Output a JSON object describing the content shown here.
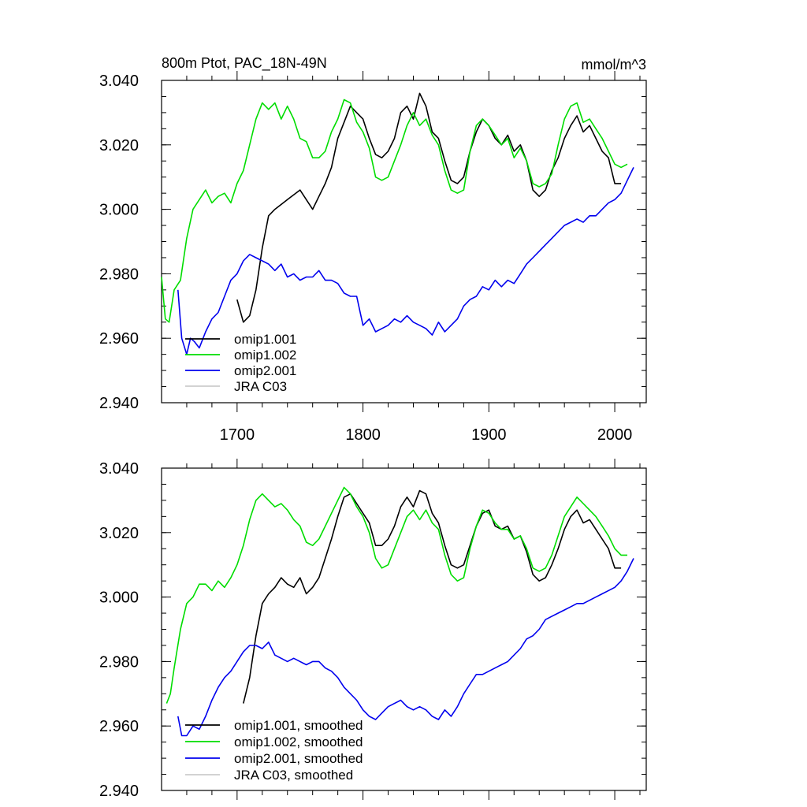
{
  "chart_data": [
    {
      "type": "line",
      "title_left": "800m Ptot, PAC_18N-49N",
      "title_right": "mmol/m^3",
      "xlim": [
        1640,
        2025
      ],
      "ylim": [
        2.94,
        3.04
      ],
      "yticks": [
        "3.040",
        "3.020",
        "3.000",
        "2.980",
        "2.960",
        "2.940"
      ],
      "xticks": [
        "1700",
        "1800",
        "1900",
        "2000"
      ],
      "legend": [
        "omip1.001",
        "omip1.002",
        "omip2.001",
        "JRA C03"
      ],
      "series": [
        {
          "name": "omip1.001",
          "color": "#000000",
          "x": [
            1700,
            1705,
            1710,
            1715,
            1720,
            1725,
            1730,
            1740,
            1750,
            1760,
            1765,
            1770,
            1775,
            1780,
            1785,
            1790,
            1795,
            1800,
            1805,
            1810,
            1815,
            1820,
            1825,
            1830,
            1835,
            1840,
            1845,
            1850,
            1855,
            1860,
            1865,
            1870,
            1875,
            1880,
            1885,
            1890,
            1895,
            1900,
            1905,
            1910,
            1915,
            1920,
            1925,
            1930,
            1935,
            1940,
            1945,
            1950,
            1955,
            1960,
            1965,
            1970,
            1975,
            1980,
            1985,
            1990,
            1995,
            2000,
            2005
          ],
          "y": [
            2.972,
            2.965,
            2.967,
            2.975,
            2.988,
            2.998,
            3.0,
            3.003,
            3.006,
            3.0,
            3.004,
            3.008,
            3.013,
            3.022,
            3.027,
            3.032,
            3.03,
            3.028,
            3.022,
            3.017,
            3.016,
            3.018,
            3.022,
            3.03,
            3.032,
            3.028,
            3.036,
            3.032,
            3.024,
            3.022,
            3.015,
            3.009,
            3.008,
            3.01,
            3.018,
            3.024,
            3.028,
            3.026,
            3.022,
            3.02,
            3.023,
            3.018,
            3.02,
            3.015,
            3.006,
            3.004,
            3.006,
            3.012,
            3.016,
            3.022,
            3.026,
            3.029,
            3.024,
            3.026,
            3.022,
            3.018,
            3.016,
            3.008,
            3.008
          ]
        },
        {
          "name": "omip1.002",
          "color": "#00dd00",
          "x": [
            1640,
            1643,
            1646,
            1650,
            1655,
            1660,
            1665,
            1670,
            1675,
            1680,
            1685,
            1690,
            1695,
            1700,
            1705,
            1710,
            1715,
            1720,
            1725,
            1730,
            1735,
            1740,
            1745,
            1750,
            1755,
            1760,
            1765,
            1770,
            1775,
            1780,
            1785,
            1790,
            1795,
            1800,
            1805,
            1810,
            1815,
            1820,
            1825,
            1830,
            1835,
            1840,
            1845,
            1850,
            1855,
            1860,
            1865,
            1870,
            1875,
            1880,
            1885,
            1890,
            1895,
            1900,
            1905,
            1910,
            1915,
            1920,
            1925,
            1930,
            1935,
            1940,
            1945,
            1950,
            1955,
            1960,
            1965,
            1970,
            1975,
            1980,
            1985,
            1990,
            1995,
            2000,
            2005,
            2010
          ],
          "y": [
            2.979,
            2.966,
            2.965,
            2.975,
            2.978,
            2.991,
            3.0,
            3.003,
            3.006,
            3.002,
            3.004,
            3.005,
            3.002,
            3.008,
            3.012,
            3.02,
            3.028,
            3.033,
            3.031,
            3.033,
            3.028,
            3.032,
            3.028,
            3.022,
            3.021,
            3.016,
            3.016,
            3.018,
            3.024,
            3.028,
            3.034,
            3.033,
            3.027,
            3.024,
            3.019,
            3.01,
            3.009,
            3.01,
            3.015,
            3.02,
            3.026,
            3.03,
            3.026,
            3.028,
            3.023,
            3.02,
            3.012,
            3.006,
            3.005,
            3.006,
            3.018,
            3.026,
            3.028,
            3.026,
            3.023,
            3.02,
            3.022,
            3.016,
            3.019,
            3.015,
            3.008,
            3.007,
            3.008,
            3.011,
            3.02,
            3.028,
            3.032,
            3.033,
            3.027,
            3.028,
            3.025,
            3.022,
            3.018,
            3.014,
            3.013,
            3.014
          ]
        },
        {
          "name": "omip2.001",
          "color": "#0000ee",
          "x": [
            1653,
            1656,
            1660,
            1663,
            1666,
            1670,
            1675,
            1680,
            1685,
            1690,
            1695,
            1700,
            1705,
            1710,
            1715,
            1720,
            1725,
            1730,
            1735,
            1740,
            1745,
            1750,
            1755,
            1760,
            1765,
            1770,
            1775,
            1780,
            1785,
            1790,
            1795,
            1800,
            1805,
            1810,
            1815,
            1820,
            1825,
            1830,
            1835,
            1840,
            1845,
            1850,
            1855,
            1860,
            1865,
            1870,
            1875,
            1880,
            1885,
            1890,
            1895,
            1900,
            1905,
            1910,
            1915,
            1920,
            1925,
            1930,
            1935,
            1940,
            1945,
            1950,
            1955,
            1960,
            1965,
            1970,
            1975,
            1980,
            1985,
            1990,
            1995,
            2000,
            2005,
            2010,
            2015
          ],
          "y": [
            2.975,
            2.96,
            2.955,
            2.96,
            2.959,
            2.957,
            2.962,
            2.966,
            2.968,
            2.973,
            2.978,
            2.98,
            2.984,
            2.986,
            2.985,
            2.984,
            2.983,
            2.981,
            2.983,
            2.979,
            2.98,
            2.978,
            2.979,
            2.979,
            2.981,
            2.978,
            2.978,
            2.977,
            2.974,
            2.973,
            2.973,
            2.964,
            2.966,
            2.962,
            2.963,
            2.964,
            2.966,
            2.965,
            2.967,
            2.965,
            2.964,
            2.963,
            2.961,
            2.965,
            2.962,
            2.964,
            2.966,
            2.97,
            2.972,
            2.973,
            2.976,
            2.975,
            2.978,
            2.976,
            2.978,
            2.977,
            2.98,
            2.983,
            2.985,
            2.987,
            2.989,
            2.991,
            2.993,
            2.995,
            2.996,
            2.997,
            2.996,
            2.998,
            2.998,
            3.0,
            3.002,
            3.003,
            3.005,
            3.009,
            3.013
          ]
        },
        {
          "name": "JRA C03",
          "color": "#cccccc",
          "x": [],
          "y": []
        }
      ]
    },
    {
      "type": "line",
      "xlim": [
        1640,
        2025
      ],
      "ylim": [
        2.94,
        3.04
      ],
      "yticks": [
        "3.040",
        "3.020",
        "3.000",
        "2.980",
        "2.960",
        "2.940"
      ],
      "legend": [
        "omip1.001, smoothed",
        "omip1.002, smoothed",
        "omip2.001, smoothed",
        "JRA C03, smoothed"
      ],
      "series": [
        {
          "name": "omip1.001, smoothed",
          "color": "#000000",
          "x": [
            1705,
            1710,
            1715,
            1720,
            1725,
            1730,
            1735,
            1740,
            1745,
            1750,
            1755,
            1760,
            1765,
            1770,
            1775,
            1780,
            1785,
            1790,
            1795,
            1800,
            1805,
            1810,
            1815,
            1820,
            1825,
            1830,
            1835,
            1840,
            1845,
            1850,
            1855,
            1860,
            1865,
            1870,
            1875,
            1880,
            1885,
            1890,
            1895,
            1900,
            1905,
            1910,
            1915,
            1920,
            1925,
            1930,
            1935,
            1940,
            1945,
            1950,
            1955,
            1960,
            1965,
            1970,
            1975,
            1980,
            1985,
            1990,
            1995,
            2000,
            2005
          ],
          "y": [
            2.967,
            2.975,
            2.988,
            2.998,
            3.001,
            3.003,
            3.006,
            3.004,
            3.003,
            3.006,
            3.001,
            3.003,
            3.006,
            3.012,
            3.018,
            3.025,
            3.031,
            3.032,
            3.029,
            3.026,
            3.023,
            3.016,
            3.016,
            3.018,
            3.022,
            3.028,
            3.031,
            3.028,
            3.033,
            3.032,
            3.026,
            3.023,
            3.016,
            3.01,
            3.009,
            3.01,
            3.016,
            3.022,
            3.026,
            3.027,
            3.022,
            3.021,
            3.022,
            3.018,
            3.019,
            3.014,
            3.007,
            3.005,
            3.006,
            3.01,
            3.015,
            3.021,
            3.025,
            3.027,
            3.023,
            3.024,
            3.021,
            3.018,
            3.015,
            3.009,
            3.009
          ]
        },
        {
          "name": "omip1.002, smoothed",
          "color": "#00dd00",
          "x": [
            1644,
            1647,
            1650,
            1655,
            1660,
            1665,
            1670,
            1675,
            1680,
            1685,
            1690,
            1695,
            1700,
            1705,
            1710,
            1715,
            1720,
            1725,
            1730,
            1735,
            1740,
            1745,
            1750,
            1755,
            1760,
            1765,
            1770,
            1775,
            1780,
            1785,
            1790,
            1795,
            1800,
            1805,
            1810,
            1815,
            1820,
            1825,
            1830,
            1835,
            1840,
            1845,
            1850,
            1855,
            1860,
            1865,
            1870,
            1875,
            1880,
            1885,
            1890,
            1895,
            1900,
            1905,
            1910,
            1915,
            1920,
            1925,
            1930,
            1935,
            1940,
            1945,
            1950,
            1955,
            1960,
            1965,
            1970,
            1975,
            1980,
            1985,
            1990,
            1995,
            2000,
            2005,
            2010
          ],
          "y": [
            2.967,
            2.97,
            2.978,
            2.99,
            2.998,
            3.0,
            3.004,
            3.004,
            3.002,
            3.005,
            3.003,
            3.006,
            3.01,
            3.016,
            3.024,
            3.03,
            3.032,
            3.03,
            3.028,
            3.029,
            3.027,
            3.024,
            3.022,
            3.017,
            3.016,
            3.018,
            3.022,
            3.026,
            3.03,
            3.034,
            3.032,
            3.028,
            3.025,
            3.02,
            3.012,
            3.009,
            3.01,
            3.015,
            3.02,
            3.025,
            3.027,
            3.024,
            3.027,
            3.023,
            3.021,
            3.013,
            3.007,
            3.005,
            3.006,
            3.015,
            3.022,
            3.027,
            3.026,
            3.023,
            3.021,
            3.021,
            3.018,
            3.019,
            3.015,
            3.009,
            3.008,
            3.009,
            3.013,
            3.019,
            3.025,
            3.028,
            3.031,
            3.029,
            3.027,
            3.025,
            3.022,
            3.019,
            3.015,
            3.013,
            3.013
          ]
        },
        {
          "name": "omip2.001, smoothed",
          "color": "#0000ee",
          "x": [
            1653,
            1656,
            1660,
            1665,
            1670,
            1675,
            1680,
            1685,
            1690,
            1695,
            1700,
            1705,
            1710,
            1715,
            1720,
            1725,
            1730,
            1735,
            1740,
            1745,
            1750,
            1755,
            1760,
            1765,
            1770,
            1775,
            1780,
            1785,
            1790,
            1795,
            1800,
            1805,
            1810,
            1815,
            1820,
            1825,
            1830,
            1835,
            1840,
            1845,
            1850,
            1855,
            1860,
            1865,
            1870,
            1875,
            1880,
            1885,
            1890,
            1895,
            1900,
            1905,
            1910,
            1915,
            1920,
            1925,
            1930,
            1935,
            1940,
            1945,
            1950,
            1955,
            1960,
            1965,
            1970,
            1975,
            1980,
            1985,
            1990,
            1995,
            2000,
            2005,
            2010,
            2015
          ],
          "y": [
            2.963,
            2.957,
            2.957,
            2.96,
            2.959,
            2.963,
            2.968,
            2.972,
            2.975,
            2.977,
            2.98,
            2.983,
            2.985,
            2.985,
            2.984,
            2.986,
            2.982,
            2.981,
            2.98,
            2.981,
            2.98,
            2.979,
            2.98,
            2.98,
            2.978,
            2.977,
            2.975,
            2.972,
            2.97,
            2.968,
            2.965,
            2.963,
            2.962,
            2.964,
            2.966,
            2.967,
            2.968,
            2.966,
            2.965,
            2.966,
            2.965,
            2.963,
            2.962,
            2.965,
            2.963,
            2.966,
            2.97,
            2.973,
            2.976,
            2.976,
            2.977,
            2.978,
            2.979,
            2.98,
            2.982,
            2.984,
            2.987,
            2.988,
            2.99,
            2.993,
            2.994,
            2.995,
            2.996,
            2.997,
            2.998,
            2.998,
            2.999,
            3.0,
            3.001,
            3.002,
            3.003,
            3.005,
            3.008,
            3.012
          ]
        },
        {
          "name": "JRA C03, smoothed",
          "color": "#cccccc",
          "x": [],
          "y": []
        }
      ]
    }
  ]
}
